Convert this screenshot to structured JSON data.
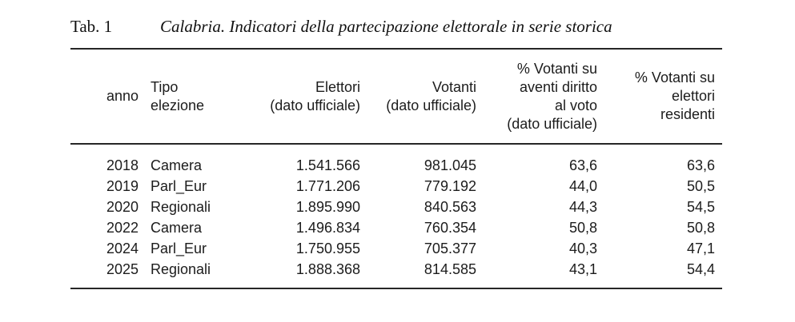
{
  "caption": {
    "label": "Tab. 1",
    "title": "Calabria. Indicatori della partecipazione elettorale in serie storica"
  },
  "table": {
    "columns": [
      {
        "key": "anno",
        "lines": [
          "anno"
        ]
      },
      {
        "key": "tipo_elezione",
        "lines": [
          "Tipo",
          "elezione"
        ]
      },
      {
        "key": "elettori",
        "lines": [
          "Elettori",
          "(dato ufficiale)"
        ]
      },
      {
        "key": "votanti",
        "lines": [
          "Votanti",
          "(dato ufficiale)"
        ]
      },
      {
        "key": "pct_aventi_diritto",
        "lines": [
          "% Votanti su",
          "aventi diritto",
          "al voto",
          "(dato ufficiale)"
        ]
      },
      {
        "key": "pct_residenti",
        "lines": [
          "% Votanti su",
          "elettori",
          "residenti"
        ]
      }
    ],
    "rows": [
      [
        "2018",
        "Camera",
        "1.541.566",
        "981.045",
        "63,6",
        "63,6"
      ],
      [
        "2019",
        "Parl_Eur",
        "1.771.206",
        "779.192",
        "44,0",
        "50,5"
      ],
      [
        "2020",
        "Regionali",
        "1.895.990",
        "840.563",
        "44,3",
        "54,5"
      ],
      [
        "2022",
        "Camera",
        "1.496.834",
        "760.354",
        "50,8",
        "50,8"
      ],
      [
        "2024",
        "Parl_Eur",
        "1.750.955",
        "705.377",
        "40,3",
        "47,1"
      ],
      [
        "2025",
        "Regionali",
        "1.888.368",
        "814.585",
        "43,1",
        "54,4"
      ]
    ]
  },
  "colors": {
    "text": "#1c1c1c",
    "rule": "#262626",
    "background": "#ffffff"
  }
}
